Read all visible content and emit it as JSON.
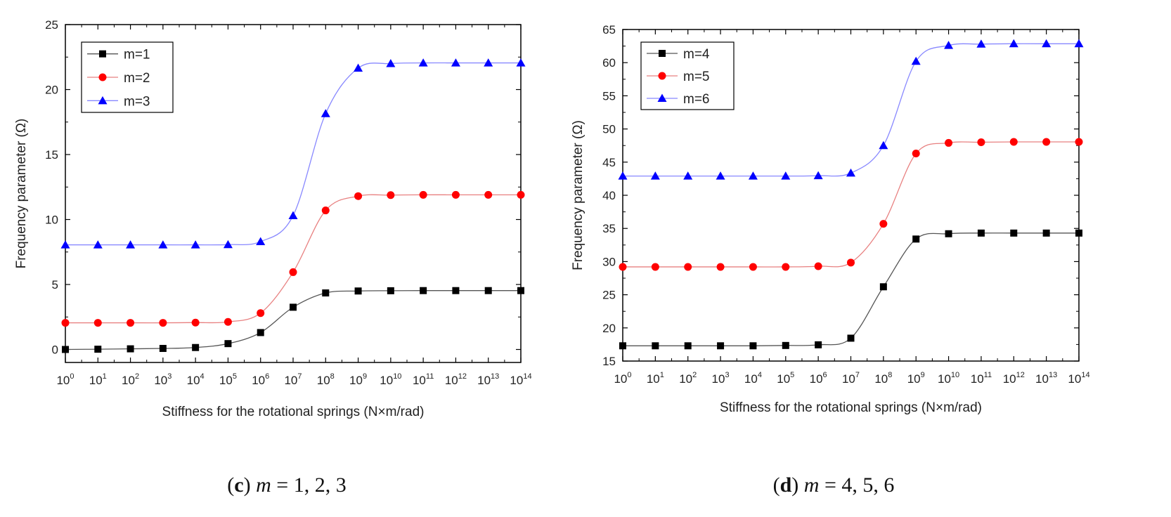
{
  "chart_data": [
    {
      "type": "line",
      "panel": "c",
      "caption": {
        "open": "(",
        "letter": "c",
        "close": ")",
        "var": "m",
        "rest": " = 1, 2, 3"
      },
      "xlabel": "Stiffness for the rotational springs (N×m/rad)",
      "ylabel": "Frequency parameter (Ω)",
      "x_tick_base": "10",
      "x_exponents": [
        "0",
        "1",
        "2",
        "3",
        "4",
        "5",
        "6",
        "7",
        "8",
        "9",
        "10",
        "11",
        "12",
        "13",
        "14"
      ],
      "ylim": [
        -1,
        25
      ],
      "yticks": [
        "0",
        "5",
        "10",
        "15",
        "20",
        "25"
      ],
      "legend_position": "top-left",
      "series": [
        {
          "name": "m=1",
          "color": "#555555",
          "marker": "square",
          "marker_color": "#000000",
          "values": [
            0.0,
            0.02,
            0.05,
            0.08,
            0.15,
            0.45,
            1.3,
            3.25,
            4.35,
            4.5,
            4.52,
            4.53,
            4.53,
            4.53,
            4.53
          ]
        },
        {
          "name": "m=2",
          "color": "#e88080",
          "marker": "circle",
          "marker_color": "#ff0000",
          "values": [
            2.05,
            2.05,
            2.05,
            2.05,
            2.07,
            2.12,
            2.8,
            5.95,
            10.7,
            11.8,
            11.88,
            11.9,
            11.9,
            11.9,
            11.9
          ]
        },
        {
          "name": "m=3",
          "color": "#8888ff",
          "marker": "triangle",
          "marker_color": "#0000ff",
          "values": [
            8.05,
            8.05,
            8.05,
            8.05,
            8.05,
            8.07,
            8.3,
            10.3,
            18.15,
            21.65,
            22.0,
            22.05,
            22.05,
            22.05,
            22.05
          ]
        }
      ]
    },
    {
      "type": "line",
      "panel": "d",
      "caption": {
        "open": "(",
        "letter": "d",
        "close": ")",
        "var": "m",
        "rest": " = 4, 5, 6"
      },
      "xlabel": "Stiffness for the rotational springs (N×m/rad)",
      "ylabel": "Frequency parameter (Ω)",
      "x_tick_base": "10",
      "x_exponents": [
        "0",
        "1",
        "2",
        "3",
        "4",
        "5",
        "6",
        "7",
        "8",
        "9",
        "10",
        "11",
        "12",
        "13",
        "14"
      ],
      "ylim": [
        15,
        65
      ],
      "yticks": [
        "15",
        "20",
        "25",
        "30",
        "35",
        "40",
        "45",
        "50",
        "55",
        "60",
        "65"
      ],
      "legend_position": "top-left",
      "series": [
        {
          "name": "m=4",
          "color": "#555555",
          "marker": "square",
          "marker_color": "#000000",
          "values": [
            17.3,
            17.3,
            17.3,
            17.3,
            17.3,
            17.35,
            17.45,
            18.45,
            26.2,
            33.4,
            34.2,
            34.3,
            34.3,
            34.3,
            34.3
          ]
        },
        {
          "name": "m=5",
          "color": "#e88080",
          "marker": "circle",
          "marker_color": "#ff0000",
          "values": [
            29.2,
            29.2,
            29.2,
            29.2,
            29.2,
            29.2,
            29.3,
            29.85,
            35.7,
            46.3,
            47.9,
            48.0,
            48.05,
            48.05,
            48.05
          ]
        },
        {
          "name": "m=6",
          "color": "#8888ff",
          "marker": "triangle",
          "marker_color": "#0000ff",
          "values": [
            42.9,
            42.9,
            42.9,
            42.9,
            42.9,
            42.9,
            42.95,
            43.35,
            47.5,
            60.2,
            62.6,
            62.8,
            62.85,
            62.85,
            62.85
          ]
        }
      ]
    }
  ]
}
